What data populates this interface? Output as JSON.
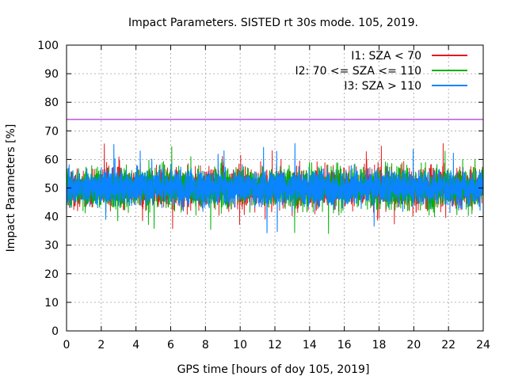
{
  "chart_data": {
    "type": "line",
    "title": "Impact Parameters. SISTED rt 30s mode. 105, 2019.",
    "xlabel": "GPS time [hours of doy 105, 2019]",
    "ylabel": "Impact Parameters [%]",
    "xlim": [
      0,
      24
    ],
    "ylim": [
      0,
      100
    ],
    "xticks": [
      0,
      2,
      4,
      6,
      8,
      10,
      12,
      14,
      16,
      18,
      20,
      22,
      24
    ],
    "yticks": [
      0,
      10,
      20,
      30,
      40,
      50,
      60,
      70,
      80,
      90,
      100
    ],
    "grid": true,
    "legend_position": "top-right",
    "threshold": {
      "value": 74,
      "color": "#9400d3"
    },
    "series": [
      {
        "name": "I1: SZA < 70",
        "color": "#e41a1c",
        "mean": 50,
        "spread": 7,
        "min": 35,
        "max": 66
      },
      {
        "name": "I2: 70 <= SZA <= 110",
        "color": "#00b000",
        "mean": 50,
        "spread": 7,
        "min": 33,
        "max": 66
      },
      {
        "name": "I3: SZA > 110",
        "color": "#0a84ff",
        "mean": 50,
        "spread": 6,
        "min": 33,
        "max": 67.5
      }
    ]
  }
}
